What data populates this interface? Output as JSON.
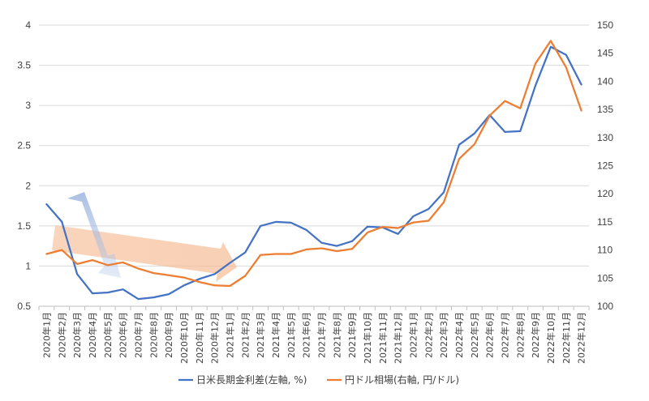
{
  "chart_data": {
    "type": "line",
    "title": "",
    "categories": [
      "2020年1月",
      "2020年2月",
      "2020年3月",
      "2020年4月",
      "2020年5月",
      "2020年6月",
      "2020年7月",
      "2020年8月",
      "2020年9月",
      "2020年10月",
      "2020年11月",
      "2020年12月",
      "2021年1月",
      "2021年2月",
      "2021年3月",
      "2021年4月",
      "2021年5月",
      "2021年6月",
      "2021年7月",
      "2021年8月",
      "2021年9月",
      "2021年10月",
      "2021年11月",
      "2021年12月",
      "2022年1月",
      "2022年2月",
      "2022年3月",
      "2022年4月",
      "2022年5月",
      "2022年6月",
      "2022年7月",
      "2022年8月",
      "2022年9月",
      "2022年10月",
      "2022年11月",
      "2022年12月"
    ],
    "y_left": {
      "min": 0.5,
      "max": 4,
      "ticks": [
        "0.5",
        "1",
        "1.5",
        "2",
        "2.5",
        "3",
        "3.5",
        "4"
      ]
    },
    "y_right": {
      "min": 100,
      "max": 150,
      "ticks": [
        "100",
        "105",
        "110",
        "115",
        "120",
        "125",
        "130",
        "135",
        "140",
        "145",
        "150"
      ]
    },
    "series": [
      {
        "name": "日米長期金利差(左軸, %)",
        "axis": "left",
        "color": "#4472C4",
        "values": [
          1.77,
          1.55,
          0.9,
          0.66,
          0.67,
          0.71,
          0.59,
          0.61,
          0.65,
          0.76,
          0.84,
          0.9,
          1.04,
          1.17,
          1.5,
          1.55,
          1.54,
          1.45,
          1.29,
          1.25,
          1.31,
          1.49,
          1.48,
          1.4,
          1.62,
          1.71,
          1.92,
          2.51,
          2.65,
          2.88,
          2.67,
          2.68,
          3.25,
          3.73,
          3.63,
          3.26
        ]
      },
      {
        "name": "円ドル相場(右軸, 円/ドル)",
        "axis": "right",
        "color": "#ED7D31",
        "values": [
          109.3,
          110.0,
          107.5,
          108.2,
          107.3,
          107.8,
          106.7,
          105.9,
          105.5,
          105.1,
          104.3,
          103.7,
          103.6,
          105.4,
          109.1,
          109.3,
          109.3,
          110.1,
          110.3,
          109.8,
          110.2,
          113.1,
          114.1,
          113.9,
          114.9,
          115.2,
          118.5,
          126.2,
          128.8,
          133.9,
          136.5,
          135.2,
          143.2,
          147.2,
          142.5,
          134.8
        ]
      }
    ],
    "legend": {
      "position": "bottom"
    }
  }
}
